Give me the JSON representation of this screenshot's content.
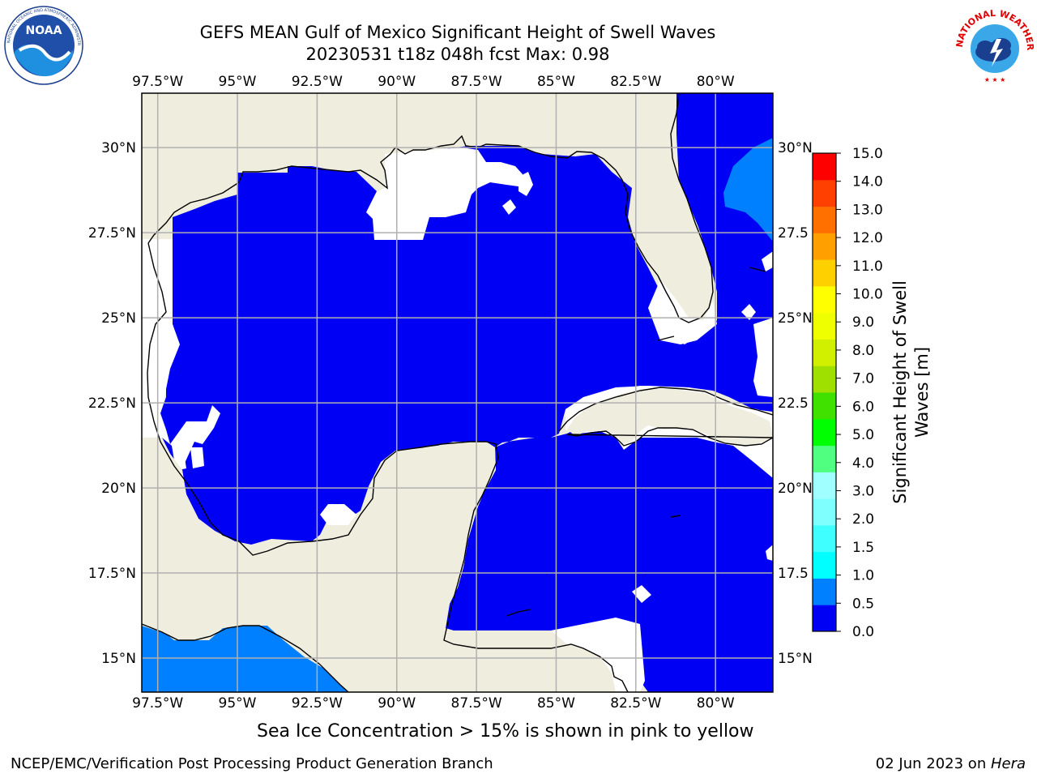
{
  "header": {
    "title": "GEFS MEAN Gulf of Mexico Significant Height of Swell Waves",
    "subtitle": "20230531 t18z 048h fcst   Max: 0.98"
  },
  "logos": {
    "noaa_text": "NOAA",
    "noaa_ring": "NATIONAL OCEANIC AND ATMOSPHERIC ADMINISTRATION · U.S. DEPARTMENT OF COMMERCE",
    "nws_ring": "NATIONAL WEATHER SERVICE"
  },
  "map": {
    "lon_labels": [
      "97.5°W",
      "95°W",
      "92.5°W",
      "90°W",
      "87.5°W",
      "85°W",
      "82.5°W",
      "80°W"
    ],
    "lat_labels": [
      "30°N",
      "27.5°N",
      "25°N",
      "22.5°N",
      "20°N",
      "17.5°N",
      "15°N"
    ],
    "right_lat_labels": [
      "30°N",
      "27.5",
      "25°N",
      "22.5",
      "20°N",
      "17.5",
      "15°N"
    ],
    "lon_values": [
      -97.5,
      -95,
      -92.5,
      -90,
      -87.5,
      -85,
      -82.5,
      -80
    ],
    "lat_values": [
      30,
      27.5,
      25,
      22.5,
      20,
      17.5,
      15
    ],
    "extent": {
      "lon_min": -98,
      "lon_max": -78.2,
      "lat_min": 14,
      "lat_max": 31.6
    },
    "colors": {
      "land": "#efedde",
      "swell_0_05": "#0000f5",
      "swell_05_10": "#0080ff",
      "no_data": "#ffffff",
      "gridline": "#b0b0b0",
      "coastline": "#000000"
    }
  },
  "colorbar": {
    "label": "Significant Height of Swell Waves [m]",
    "label_line1": "Significant Height of Swell",
    "label_line2": "Waves [m]",
    "ticks": [
      "15.0",
      "14.0",
      "13.0",
      "12.0",
      "11.0",
      "10.0",
      "9.0",
      "8.0",
      "7.0",
      "6.0",
      "5.0",
      "4.0",
      "3.0",
      "2.0",
      "1.5",
      "1.0",
      "0.5",
      "0.0"
    ],
    "colors_bottom_to_top": [
      "#0000f5",
      "#0080ff",
      "#00ffff",
      "#40ffff",
      "#80ffff",
      "#a0ffff",
      "#50ff80",
      "#00ff00",
      "#40e000",
      "#a0e000",
      "#d0f000",
      "#f0ff00",
      "#ffff00",
      "#ffd000",
      "#ffa000",
      "#ff7000",
      "#ff4000",
      "#ff0000"
    ]
  },
  "footer": {
    "note": "Sea Ice Concentration > 15% is shown in pink to yellow",
    "left": "NCEP/EMC/Verification Post Processing Product Generation Branch",
    "right_prefix": "02 Jun 2023 on ",
    "right_host": "Hera"
  }
}
